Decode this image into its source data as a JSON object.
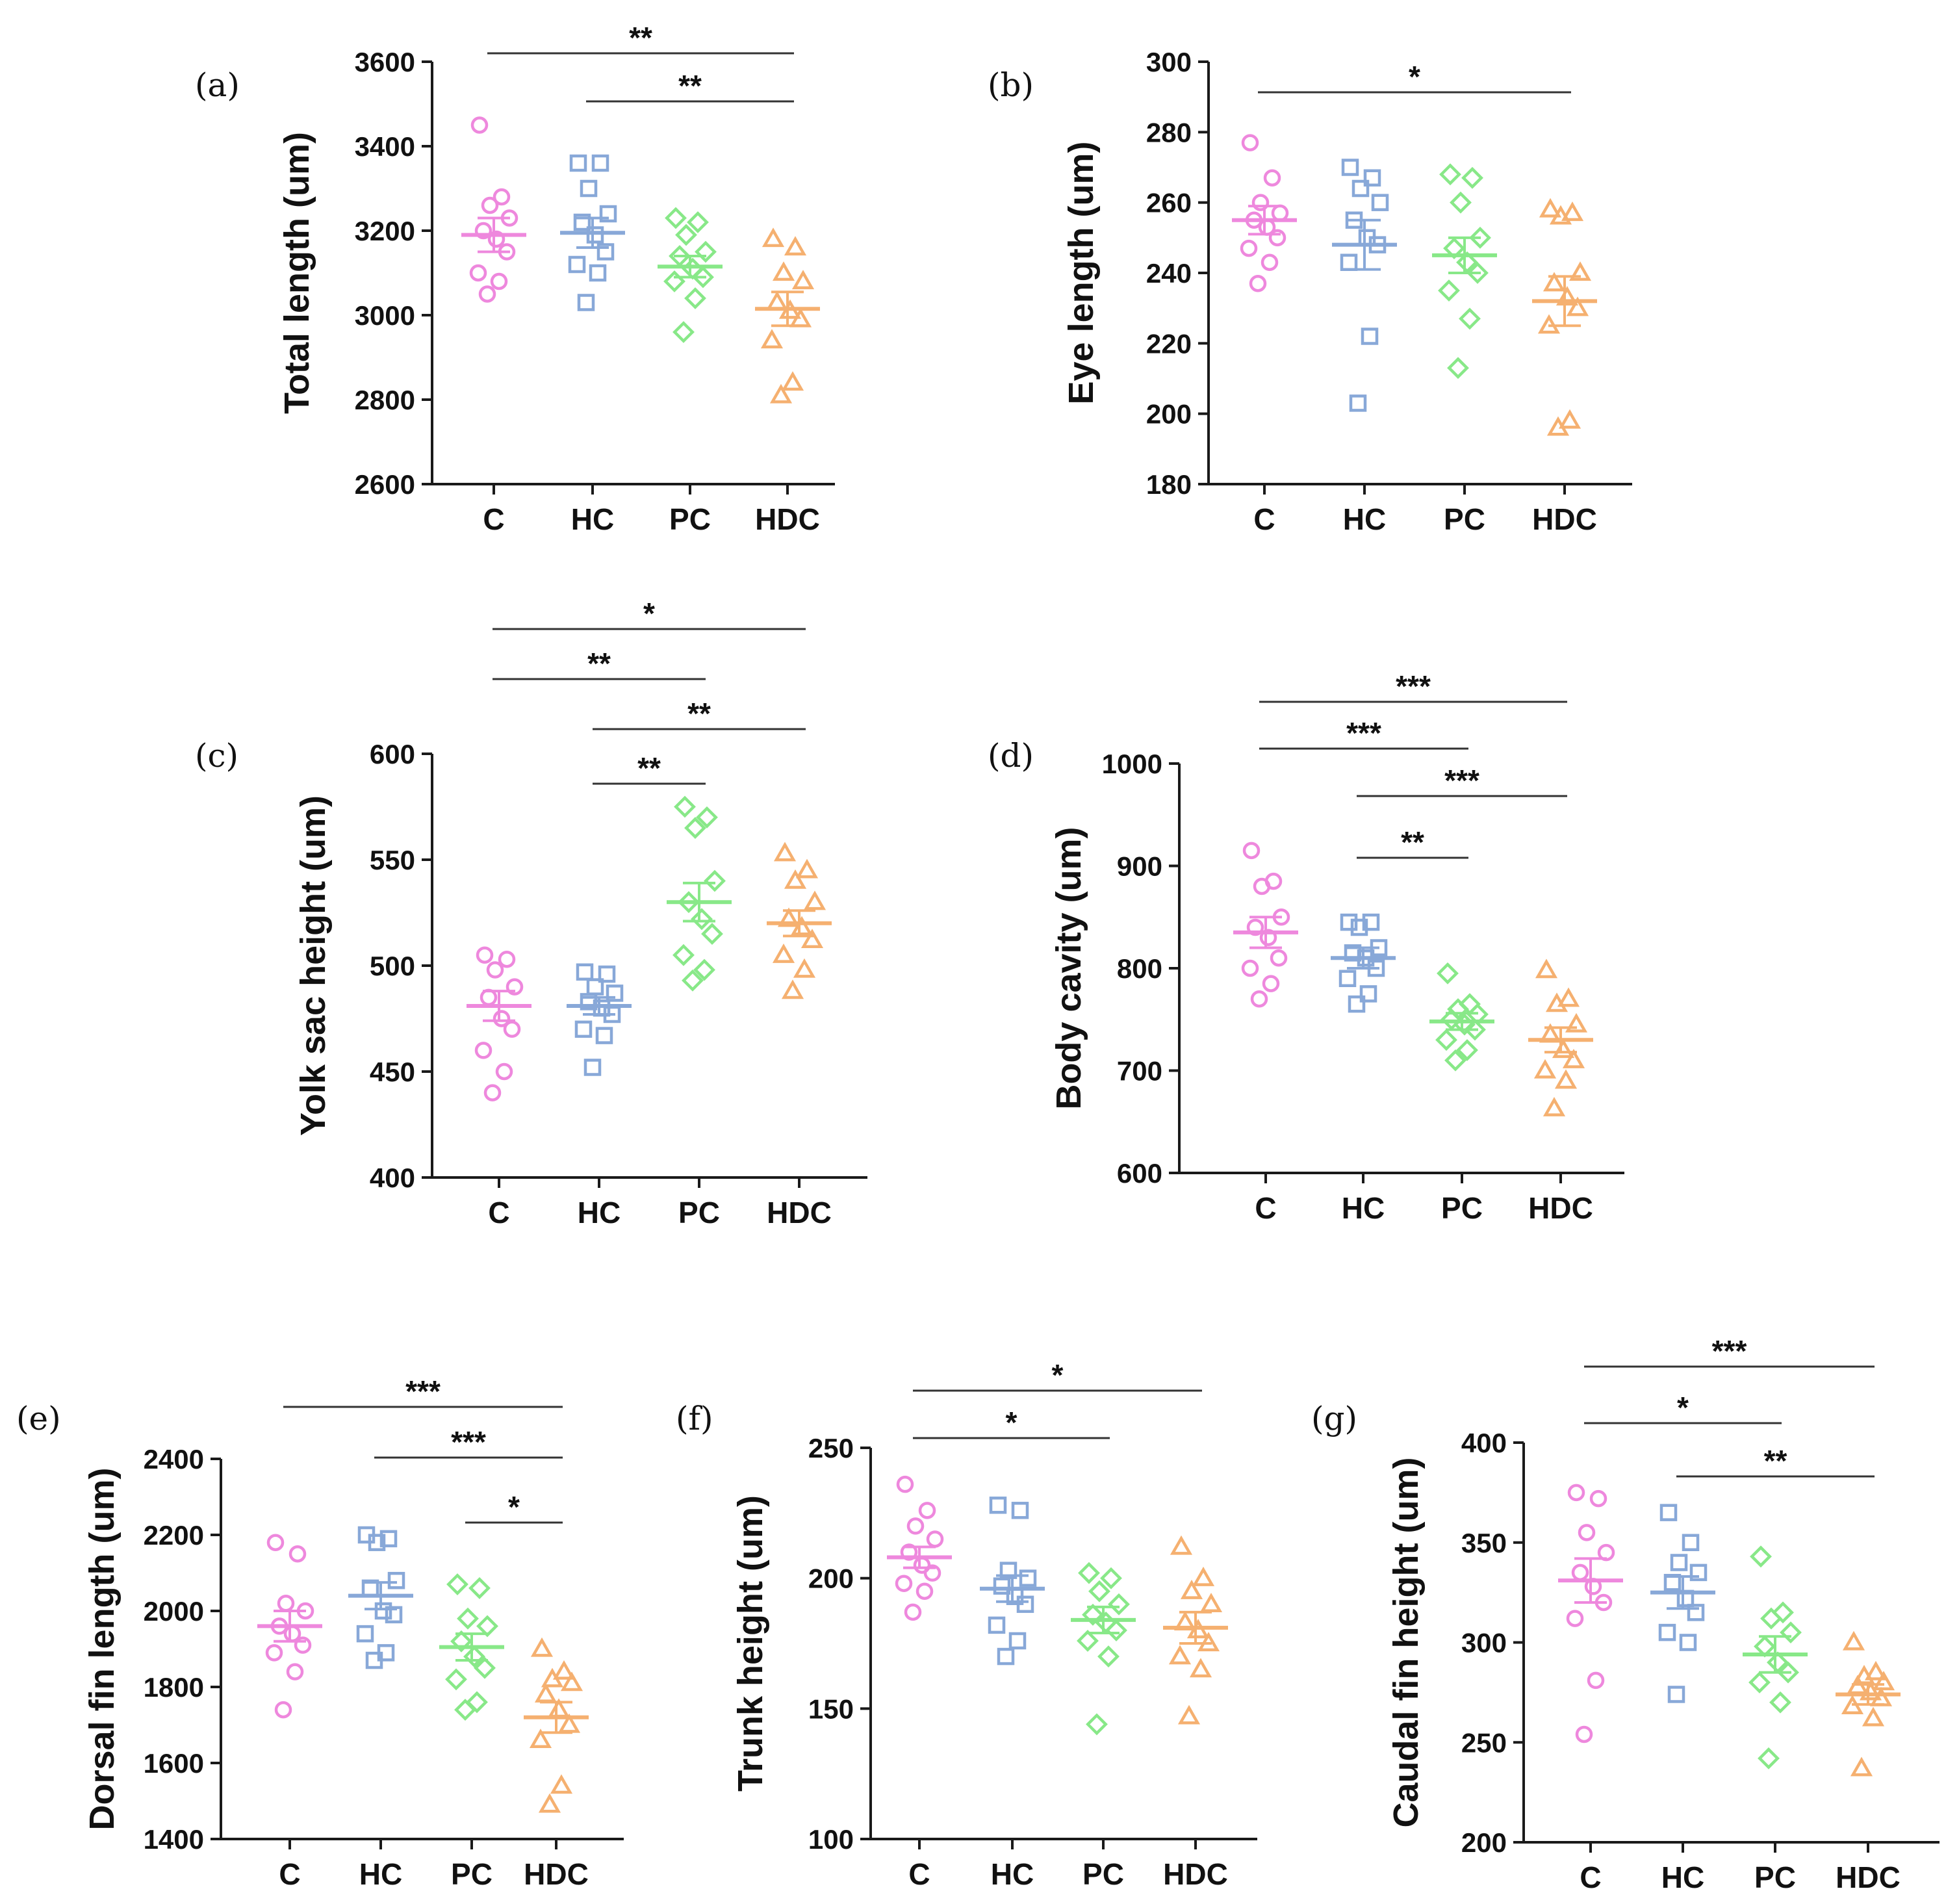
{
  "colors": {
    "C": "#ee88dd",
    "HC": "#88a8d8",
    "PC": "#88e888",
    "HDC": "#f5b070"
  },
  "chart_data": [
    {
      "id": "a",
      "type": "scatter",
      "panel_label": "(a)",
      "categories": [
        "C",
        "HC",
        "PC",
        "HDC"
      ],
      "ylabel": "Total length (um)",
      "ylim": [
        2600,
        3600
      ],
      "yticks": [
        2600,
        2800,
        3000,
        3200,
        3400,
        3600
      ],
      "series": [
        {
          "name": "C",
          "marker": "circle",
          "mean": 3190,
          "sem": 40,
          "values": [
            3450,
            3280,
            3260,
            3230,
            3200,
            3180,
            3150,
            3100,
            3080,
            3050
          ]
        },
        {
          "name": "HC",
          "marker": "square",
          "mean": 3195,
          "sem": 35,
          "values": [
            3360,
            3360,
            3300,
            3240,
            3220,
            3190,
            3150,
            3120,
            3100,
            3030
          ]
        },
        {
          "name": "PC",
          "marker": "diamond",
          "mean": 3115,
          "sem": 25,
          "values": [
            3230,
            3220,
            3190,
            3150,
            3140,
            3110,
            3090,
            3080,
            3040,
            2960
          ]
        },
        {
          "name": "HDC",
          "marker": "triangle",
          "mean": 3015,
          "sem": 40,
          "values": [
            3180,
            3160,
            3100,
            3080,
            3030,
            3010,
            2990,
            2940,
            2840,
            2810
          ]
        }
      ],
      "significance": [
        {
          "from": "C",
          "to": "HDC",
          "label": "**"
        },
        {
          "from": "HC",
          "to": "HDC",
          "label": "**"
        }
      ]
    },
    {
      "id": "b",
      "type": "scatter",
      "panel_label": "(b)",
      "categories": [
        "C",
        "HC",
        "PC",
        "HDC"
      ],
      "ylabel": "Eye length (um)",
      "ylim": [
        180,
        300
      ],
      "yticks": [
        180,
        200,
        220,
        240,
        260,
        280,
        300
      ],
      "series": [
        {
          "name": "C",
          "marker": "circle",
          "mean": 255,
          "sem": 4,
          "values": [
            277,
            267,
            260,
            257,
            255,
            253,
            250,
            247,
            243,
            237
          ]
        },
        {
          "name": "HC",
          "marker": "square",
          "mean": 248,
          "sem": 7,
          "values": [
            270,
            267,
            264,
            260,
            255,
            250,
            248,
            243,
            222,
            203
          ]
        },
        {
          "name": "PC",
          "marker": "diamond",
          "mean": 245,
          "sem": 5,
          "values": [
            268,
            267,
            260,
            250,
            247,
            243,
            240,
            235,
            227,
            213
          ]
        },
        {
          "name": "HDC",
          "marker": "triangle",
          "mean": 232,
          "sem": 7,
          "values": [
            258,
            257,
            256,
            240,
            237,
            233,
            230,
            225,
            198,
            196
          ]
        }
      ],
      "significance": [
        {
          "from": "C",
          "to": "HDC",
          "label": "*"
        }
      ]
    },
    {
      "id": "c",
      "type": "scatter",
      "panel_label": "(c)",
      "categories": [
        "C",
        "HC",
        "PC",
        "HDC"
      ],
      "ylabel": "Yolk sac height (um)",
      "ylim": [
        400,
        600
      ],
      "yticks": [
        400,
        450,
        500,
        550,
        600
      ],
      "series": [
        {
          "name": "C",
          "marker": "circle",
          "mean": 481,
          "sem": 7,
          "values": [
            505,
            503,
            498,
            490,
            485,
            475,
            470,
            460,
            450,
            440
          ]
        },
        {
          "name": "HC",
          "marker": "square",
          "mean": 481,
          "sem": 4,
          "values": [
            497,
            496,
            490,
            487,
            483,
            480,
            477,
            470,
            467,
            452
          ]
        },
        {
          "name": "PC",
          "marker": "diamond",
          "mean": 530,
          "sem": 9,
          "values": [
            575,
            570,
            565,
            540,
            530,
            522,
            515,
            505,
            498,
            493
          ]
        },
        {
          "name": "HDC",
          "marker": "triangle",
          "mean": 520,
          "sem": 6,
          "values": [
            553,
            545,
            540,
            530,
            522,
            518,
            512,
            505,
            498,
            488
          ]
        }
      ],
      "significance": [
        {
          "from": "C",
          "to": "HDC",
          "label": "*"
        },
        {
          "from": "C",
          "to": "PC",
          "label": "**"
        },
        {
          "from": "HC",
          "to": "HDC",
          "label": "**"
        },
        {
          "from": "HC",
          "to": "PC",
          "label": "**"
        }
      ]
    },
    {
      "id": "d",
      "type": "scatter",
      "panel_label": "(d)",
      "categories": [
        "C",
        "HC",
        "PC",
        "HDC"
      ],
      "ylabel": "Body cavity (um)",
      "ylim": [
        600,
        1000
      ],
      "yticks": [
        600,
        700,
        800,
        900,
        1000
      ],
      "series": [
        {
          "name": "C",
          "marker": "circle",
          "mean": 835,
          "sem": 15,
          "values": [
            915,
            885,
            880,
            850,
            840,
            830,
            810,
            800,
            785,
            770
          ]
        },
        {
          "name": "HC",
          "marker": "square",
          "mean": 810,
          "sem": 10,
          "values": [
            845,
            845,
            840,
            820,
            815,
            810,
            800,
            790,
            775,
            765
          ]
        },
        {
          "name": "PC",
          "marker": "diamond",
          "mean": 748,
          "sem": 8,
          "values": [
            795,
            765,
            760,
            755,
            750,
            745,
            740,
            730,
            720,
            710
          ]
        },
        {
          "name": "HDC",
          "marker": "triangle",
          "mean": 730,
          "sem": 12,
          "values": [
            798,
            770,
            765,
            745,
            735,
            720,
            710,
            700,
            690,
            663
          ]
        }
      ],
      "significance": [
        {
          "from": "C",
          "to": "HDC",
          "label": "***"
        },
        {
          "from": "C",
          "to": "PC",
          "label": "***"
        },
        {
          "from": "HC",
          "to": "HDC",
          "label": "***"
        },
        {
          "from": "HC",
          "to": "PC",
          "label": "**"
        }
      ]
    },
    {
      "id": "e",
      "type": "scatter",
      "panel_label": "(e)",
      "categories": [
        "C",
        "HC",
        "PC",
        "HDC"
      ],
      "ylabel": "Dorsal fin length (um)",
      "ylim": [
        1400,
        2400
      ],
      "yticks": [
        1400,
        1600,
        1800,
        2000,
        2200,
        2400
      ],
      "series": [
        {
          "name": "C",
          "marker": "circle",
          "mean": 1960,
          "sem": 40,
          "values": [
            2180,
            2150,
            2020,
            2000,
            1960,
            1940,
            1910,
            1890,
            1840,
            1740
          ]
        },
        {
          "name": "HC",
          "marker": "square",
          "mean": 2040,
          "sem": 35,
          "values": [
            2200,
            2190,
            2180,
            2080,
            2060,
            2000,
            1990,
            1940,
            1890,
            1870
          ]
        },
        {
          "name": "PC",
          "marker": "diamond",
          "mean": 1905,
          "sem": 35,
          "values": [
            2070,
            2060,
            1980,
            1960,
            1920,
            1880,
            1850,
            1820,
            1760,
            1740
          ]
        },
        {
          "name": "HDC",
          "marker": "triangle",
          "mean": 1720,
          "sem": 40,
          "values": [
            1900,
            1840,
            1820,
            1810,
            1780,
            1740,
            1700,
            1660,
            1540,
            1490
          ]
        }
      ],
      "significance": [
        {
          "from": "C",
          "to": "HDC",
          "label": "***"
        },
        {
          "from": "HC",
          "to": "HDC",
          "label": "***"
        },
        {
          "from": "PC",
          "to": "HDC",
          "label": "*"
        }
      ]
    },
    {
      "id": "f",
      "type": "scatter",
      "panel_label": "(f)",
      "categories": [
        "C",
        "HC",
        "PC",
        "HDC"
      ],
      "ylabel": "Trunk height (um)",
      "ylim": [
        100,
        250
      ],
      "yticks": [
        100,
        150,
        200,
        250
      ],
      "series": [
        {
          "name": "C",
          "marker": "circle",
          "mean": 208,
          "sem": 4,
          "values": [
            236,
            226,
            220,
            215,
            210,
            205,
            202,
            198,
            195,
            187
          ]
        },
        {
          "name": "HC",
          "marker": "square",
          "mean": 196,
          "sem": 5,
          "values": [
            228,
            226,
            203,
            200,
            197,
            193,
            190,
            182,
            176,
            170
          ]
        },
        {
          "name": "PC",
          "marker": "diamond",
          "mean": 184,
          "sem": 5,
          "values": [
            202,
            200,
            195,
            190,
            186,
            183,
            180,
            176,
            170,
            144
          ]
        },
        {
          "name": "HDC",
          "marker": "triangle",
          "mean": 181,
          "sem": 6,
          "values": [
            212,
            200,
            195,
            190,
            183,
            180,
            175,
            170,
            165,
            147
          ]
        }
      ],
      "significance": [
        {
          "from": "C",
          "to": "HDC",
          "label": "*"
        },
        {
          "from": "C",
          "to": "PC",
          "label": "*"
        }
      ]
    },
    {
      "id": "g",
      "type": "scatter",
      "panel_label": "(g)",
      "categories": [
        "C",
        "HC",
        "PC",
        "HDC"
      ],
      "ylabel": "Caudal fin height (um)",
      "ylim": [
        200,
        400
      ],
      "yticks": [
        200,
        250,
        300,
        350,
        400
      ],
      "series": [
        {
          "name": "C",
          "marker": "circle",
          "mean": 331,
          "sem": 11,
          "values": [
            375,
            372,
            355,
            345,
            335,
            328,
            320,
            312,
            281,
            254
          ]
        },
        {
          "name": "HC",
          "marker": "square",
          "mean": 325,
          "sem": 8,
          "values": [
            365,
            350,
            340,
            335,
            330,
            322,
            315,
            305,
            300,
            274
          ]
        },
        {
          "name": "PC",
          "marker": "diamond",
          "mean": 294,
          "sem": 9,
          "values": [
            343,
            315,
            312,
            305,
            298,
            290,
            285,
            280,
            270,
            242
          ]
        },
        {
          "name": "HDC",
          "marker": "triangle",
          "mean": 274,
          "sem": 5,
          "values": [
            300,
            285,
            283,
            280,
            278,
            275,
            272,
            268,
            262,
            237
          ]
        }
      ],
      "significance": [
        {
          "from": "C",
          "to": "HDC",
          "label": "***"
        },
        {
          "from": "C",
          "to": "PC",
          "label": "*"
        },
        {
          "from": "HC",
          "to": "HDC",
          "label": "**"
        }
      ]
    }
  ]
}
